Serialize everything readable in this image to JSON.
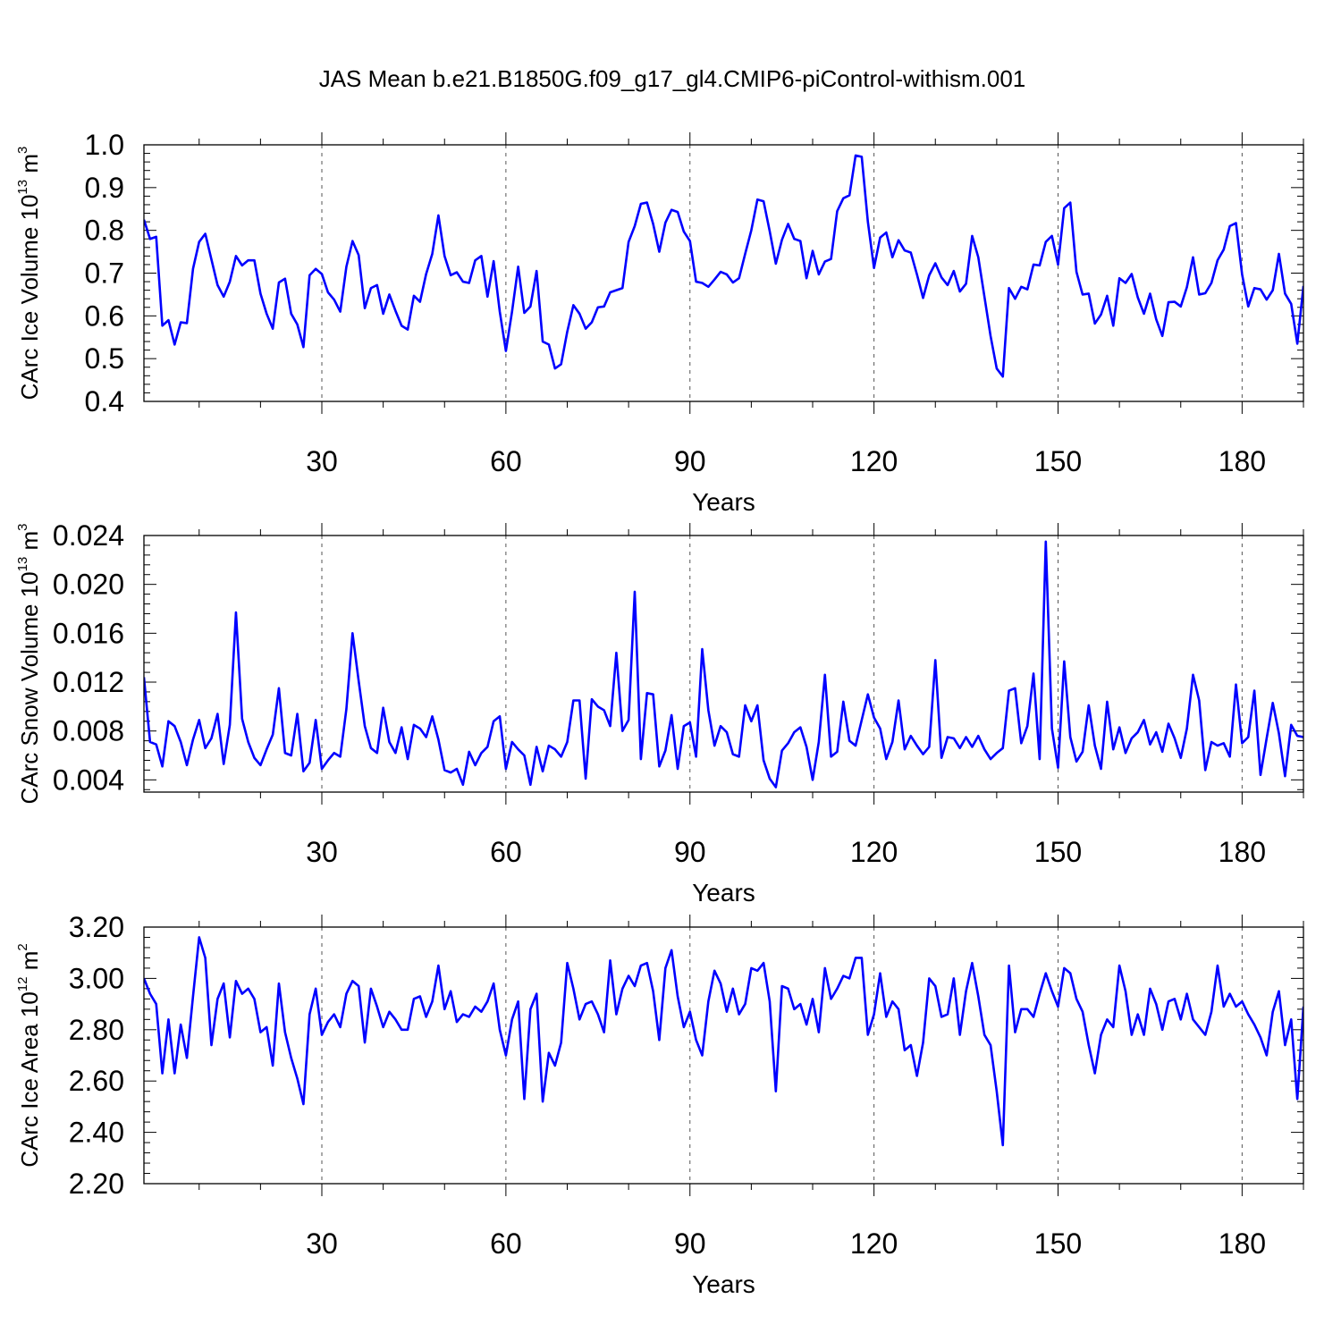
{
  "title": "JAS Mean b.e21.B1850G.f09_g17_gl4.CMIP6-piControl-withism.001",
  "chart_data": [
    {
      "type": "line",
      "xlabel": "Years",
      "ylabel_main": "CArc Ice Volume 10",
      "ylabel_exp": "13",
      "ylabel_unit": " m",
      "ylabel_unit_exp": "3",
      "xlim": [
        1,
        190
      ],
      "ylim": [
        0.4,
        1.0
      ],
      "xticks": [
        30,
        60,
        90,
        120,
        150,
        180
      ],
      "xtick_labels": [
        "30",
        "60",
        "90",
        "120",
        "150",
        "180"
      ],
      "yticks": [
        0.4,
        0.5,
        0.6,
        0.7,
        0.8,
        0.9,
        1.0
      ],
      "ytick_labels": [
        "0.4",
        "0.5",
        "0.6",
        "0.7",
        "0.8",
        "0.9",
        "1.0"
      ],
      "grid": "x-dashed",
      "color": "#0000ff",
      "values": [
        0.825,
        0.78,
        0.785,
        0.577,
        0.59,
        0.533,
        0.585,
        0.583,
        0.71,
        0.773,
        0.792,
        0.732,
        0.672,
        0.645,
        0.68,
        0.74,
        0.718,
        0.73,
        0.73,
        0.652,
        0.605,
        0.57,
        0.678,
        0.687,
        0.605,
        0.58,
        0.527,
        0.695,
        0.71,
        0.698,
        0.655,
        0.638,
        0.61,
        0.715,
        0.775,
        0.742,
        0.618,
        0.665,
        0.672,
        0.605,
        0.65,
        0.612,
        0.577,
        0.568,
        0.647,
        0.633,
        0.698,
        0.745,
        0.835,
        0.74,
        0.695,
        0.702,
        0.68,
        0.677,
        0.73,
        0.74,
        0.645,
        0.728,
        0.61,
        0.518,
        0.61,
        0.715,
        0.607,
        0.622,
        0.705,
        0.54,
        0.533,
        0.477,
        0.487,
        0.563,
        0.625,
        0.605,
        0.57,
        0.585,
        0.62,
        0.622,
        0.655,
        0.66,
        0.665,
        0.773,
        0.81,
        0.862,
        0.865,
        0.815,
        0.75,
        0.818,
        0.848,
        0.843,
        0.797,
        0.775,
        0.68,
        0.677,
        0.668,
        0.685,
        0.703,
        0.697,
        0.678,
        0.688,
        0.745,
        0.8,
        0.872,
        0.868,
        0.798,
        0.722,
        0.778,
        0.815,
        0.78,
        0.775,
        0.688,
        0.752,
        0.697,
        0.727,
        0.733,
        0.845,
        0.875,
        0.882,
        0.975,
        0.972,
        0.82,
        0.712,
        0.783,
        0.795,
        0.737,
        0.777,
        0.753,
        0.748,
        0.697,
        0.642,
        0.695,
        0.723,
        0.69,
        0.672,
        0.705,
        0.657,
        0.675,
        0.787,
        0.737,
        0.645,
        0.553,
        0.477,
        0.458,
        0.665,
        0.64,
        0.668,
        0.662,
        0.72,
        0.718,
        0.773,
        0.787,
        0.72,
        0.852,
        0.865,
        0.703,
        0.65,
        0.652,
        0.582,
        0.603,
        0.647,
        0.577,
        0.688,
        0.677,
        0.698,
        0.643,
        0.605,
        0.652,
        0.592,
        0.553,
        0.632,
        0.633,
        0.622,
        0.667,
        0.737,
        0.65,
        0.653,
        0.677,
        0.73,
        0.755,
        0.81,
        0.817,
        0.697,
        0.622,
        0.665,
        0.662,
        0.638,
        0.66,
        0.745,
        0.652,
        0.628,
        0.535,
        0.67
      ]
    },
    {
      "type": "line",
      "xlabel": "Years",
      "ylabel_main": "CArc Snow Volume 10",
      "ylabel_exp": "13",
      "ylabel_unit": " m",
      "ylabel_unit_exp": "3",
      "xlim": [
        1,
        190
      ],
      "ylim": [
        0.003,
        0.024
      ],
      "xticks": [
        30,
        60,
        90,
        120,
        150,
        180
      ],
      "xtick_labels": [
        "30",
        "60",
        "90",
        "120",
        "150",
        "180"
      ],
      "yticks": [
        0.004,
        0.008,
        0.012,
        0.016,
        0.02,
        0.024
      ],
      "ytick_labels": [
        "0.004",
        "0.008",
        "0.012",
        "0.016",
        "0.020",
        "0.024"
      ],
      "grid": "x-dashed",
      "color": "#0000ff",
      "values": [
        0.0124,
        0.0071,
        0.0069,
        0.0051,
        0.0088,
        0.0084,
        0.0071,
        0.0052,
        0.0073,
        0.0089,
        0.0066,
        0.0074,
        0.0094,
        0.0053,
        0.0085,
        0.0177,
        0.009,
        0.0071,
        0.0058,
        0.0052,
        0.0065,
        0.0077,
        0.0115,
        0.0062,
        0.006,
        0.0094,
        0.0047,
        0.0054,
        0.0089,
        0.0049,
        0.0056,
        0.0062,
        0.0059,
        0.0098,
        0.016,
        0.0121,
        0.0084,
        0.0066,
        0.0062,
        0.0099,
        0.0071,
        0.0062,
        0.0083,
        0.0057,
        0.0085,
        0.0082,
        0.0075,
        0.0092,
        0.0073,
        0.0048,
        0.0046,
        0.0049,
        0.0036,
        0.0063,
        0.0052,
        0.0062,
        0.0067,
        0.0088,
        0.0092,
        0.0049,
        0.0071,
        0.0065,
        0.006,
        0.0036,
        0.0067,
        0.0047,
        0.0068,
        0.0065,
        0.0059,
        0.0071,
        0.0105,
        0.0105,
        0.0041,
        0.0106,
        0.01,
        0.0097,
        0.0084,
        0.0144,
        0.008,
        0.0089,
        0.0194,
        0.0057,
        0.0111,
        0.011,
        0.0051,
        0.0064,
        0.0093,
        0.0049,
        0.0084,
        0.0087,
        0.0059,
        0.0147,
        0.0097,
        0.0068,
        0.0084,
        0.0079,
        0.0061,
        0.0059,
        0.0101,
        0.0088,
        0.0101,
        0.0056,
        0.0041,
        0.0034,
        0.0064,
        0.007,
        0.0079,
        0.0083,
        0.0067,
        0.004,
        0.0071,
        0.0126,
        0.0059,
        0.0063,
        0.0104,
        0.0072,
        0.0068,
        0.0089,
        0.011,
        0.0091,
        0.0082,
        0.0057,
        0.0071,
        0.0105,
        0.0065,
        0.0076,
        0.0068,
        0.0061,
        0.0067,
        0.0138,
        0.0058,
        0.0075,
        0.0074,
        0.0066,
        0.0075,
        0.0067,
        0.0076,
        0.0065,
        0.0057,
        0.0062,
        0.0066,
        0.0113,
        0.0115,
        0.007,
        0.0084,
        0.0127,
        0.0057,
        0.0235,
        0.0082,
        0.005,
        0.0137,
        0.0075,
        0.0055,
        0.0063,
        0.0101,
        0.0068,
        0.0049,
        0.0104,
        0.0065,
        0.0083,
        0.0062,
        0.0074,
        0.0079,
        0.0089,
        0.0069,
        0.0079,
        0.0063,
        0.0086,
        0.0074,
        0.0058,
        0.0082,
        0.0126,
        0.0105,
        0.0048,
        0.0071,
        0.0068,
        0.007,
        0.0059,
        0.0118,
        0.007,
        0.0075,
        0.0113,
        0.0044,
        0.0074,
        0.0103,
        0.0078,
        0.0043,
        0.0085,
        0.0076,
        0.0075
      ]
    },
    {
      "type": "line",
      "xlabel": "Years",
      "ylabel_main": "CArc Ice Area 10",
      "ylabel_exp": "12",
      "ylabel_unit": " m",
      "ylabel_unit_exp": "2",
      "xlim": [
        1,
        190
      ],
      "ylim": [
        2.2,
        3.2
      ],
      "xticks": [
        30,
        60,
        90,
        120,
        150,
        180
      ],
      "xtick_labels": [
        "30",
        "60",
        "90",
        "120",
        "150",
        "180"
      ],
      "yticks": [
        2.2,
        2.4,
        2.6,
        2.8,
        3.0,
        3.2
      ],
      "ytick_labels": [
        "2.20",
        "2.40",
        "2.60",
        "2.80",
        "3.00",
        "3.20"
      ],
      "grid": "x-dashed",
      "color": "#0000ff",
      "values": [
        3.0,
        2.94,
        2.9,
        2.63,
        2.84,
        2.63,
        2.82,
        2.69,
        2.93,
        3.16,
        3.08,
        2.74,
        2.92,
        2.98,
        2.77,
        2.99,
        2.94,
        2.96,
        2.92,
        2.79,
        2.81,
        2.66,
        2.98,
        2.79,
        2.69,
        2.61,
        2.51,
        2.86,
        2.96,
        2.78,
        2.83,
        2.86,
        2.81,
        2.94,
        2.99,
        2.97,
        2.75,
        2.96,
        2.89,
        2.81,
        2.87,
        2.84,
        2.8,
        2.8,
        2.92,
        2.93,
        2.85,
        2.91,
        3.05,
        2.88,
        2.95,
        2.83,
        2.86,
        2.85,
        2.89,
        2.87,
        2.91,
        2.98,
        2.8,
        2.7,
        2.84,
        2.91,
        2.53,
        2.88,
        2.94,
        2.52,
        2.71,
        2.66,
        2.75,
        3.06,
        2.96,
        2.84,
        2.9,
        2.91,
        2.86,
        2.79,
        3.07,
        2.86,
        2.96,
        3.01,
        2.97,
        3.05,
        3.06,
        2.95,
        2.76,
        3.04,
        3.11,
        2.93,
        2.81,
        2.87,
        2.76,
        2.7,
        2.91,
        3.03,
        2.98,
        2.87,
        2.96,
        2.86,
        2.9,
        3.04,
        3.03,
        3.06,
        2.91,
        2.56,
        2.97,
        2.96,
        2.88,
        2.9,
        2.82,
        2.92,
        2.79,
        3.04,
        2.92,
        2.96,
        3.01,
        3.0,
        3.08,
        3.08,
        2.78,
        2.86,
        3.02,
        2.85,
        2.91,
        2.88,
        2.72,
        2.74,
        2.62,
        2.75,
        3.0,
        2.97,
        2.85,
        2.86,
        3.0,
        2.78,
        2.95,
        3.06,
        2.93,
        2.78,
        2.74,
        2.56,
        2.35,
        3.05,
        2.79,
        2.88,
        2.88,
        2.85,
        2.94,
        3.02,
        2.95,
        2.89,
        3.04,
        3.02,
        2.92,
        2.87,
        2.74,
        2.63,
        2.78,
        2.84,
        2.81,
        3.05,
        2.95,
        2.78,
        2.86,
        2.78,
        2.96,
        2.9,
        2.8,
        2.91,
        2.92,
        2.84,
        2.94,
        2.84,
        2.81,
        2.78,
        2.87,
        3.05,
        2.89,
        2.94,
        2.89,
        2.91,
        2.86,
        2.82,
        2.77,
        2.7,
        2.87,
        2.95,
        2.74,
        2.84,
        2.53,
        2.89
      ]
    }
  ]
}
